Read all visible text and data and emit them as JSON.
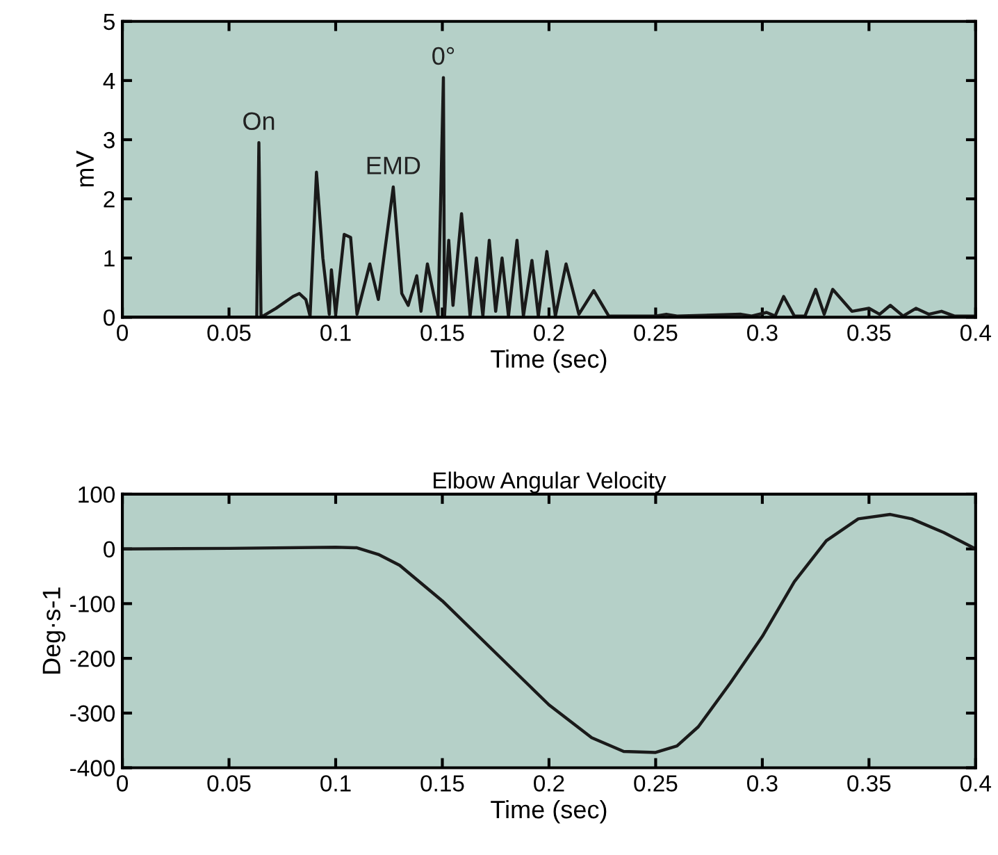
{
  "chart_data": [
    {
      "type": "line",
      "xlabel": "Time (sec)",
      "ylabel": "mV",
      "xlim": [
        0,
        0.4
      ],
      "ylim": [
        0,
        5
      ],
      "xticks": [
        0,
        0.05,
        0.1,
        0.15,
        0.2,
        0.25,
        0.3,
        0.35,
        0.4
      ],
      "yticks": [
        0,
        1,
        2,
        3,
        4,
        5
      ],
      "grid": false,
      "legend": false,
      "marker": "none",
      "line_style": "solid",
      "annotations": [
        {
          "text": "On",
          "x": 0.064,
          "y": 2.95
        },
        {
          "text": "EMD",
          "x": 0.127,
          "y": 2.2
        },
        {
          "text": "0°",
          "x": 0.1505,
          "y": 4.05
        }
      ],
      "series": [
        {
          "color": "#1a1a1a",
          "x": [
            0,
            0.063,
            0.064,
            0.065,
            0.072,
            0.08,
            0.083,
            0.086,
            0.088,
            0.091,
            0.094,
            0.097,
            0.098,
            0.1,
            0.104,
            0.107,
            0.11,
            0.116,
            0.12,
            0.127,
            0.131,
            0.134,
            0.138,
            0.14,
            0.143,
            0.148,
            0.1505,
            0.151,
            0.153,
            0.155,
            0.159,
            0.163,
            0.166,
            0.169,
            0.172,
            0.175,
            0.178,
            0.181,
            0.185,
            0.188,
            0.192,
            0.195,
            0.199,
            0.203,
            0.208,
            0.214,
            0.221,
            0.228,
            0.25,
            0.255,
            0.26,
            0.29,
            0.295,
            0.302,
            0.306,
            0.31,
            0.315,
            0.32,
            0.325,
            0.329,
            0.333,
            0.342,
            0.35,
            0.355,
            0.36,
            0.366,
            0.372,
            0.378,
            0.384,
            0.39,
            0.4
          ],
          "values": [
            0,
            0,
            2.95,
            0,
            0.15,
            0.35,
            0.4,
            0.3,
            0.02,
            2.45,
            1.0,
            0.05,
            0.8,
            0.05,
            1.4,
            1.35,
            0.05,
            0.9,
            0.3,
            2.2,
            0.4,
            0.2,
            0.7,
            0.1,
            0.9,
            0.02,
            4.05,
            0,
            1.3,
            0.2,
            1.75,
            0.02,
            1.0,
            0.02,
            1.3,
            0.1,
            1.0,
            0.02,
            1.3,
            0.02,
            0.96,
            0.02,
            1.11,
            0.02,
            0.9,
            0.05,
            0.45,
            0.02,
            0.02,
            0.05,
            0.02,
            0.05,
            0.02,
            0.08,
            0.02,
            0.35,
            0.02,
            0.02,
            0.47,
            0.05,
            0.47,
            0.1,
            0.15,
            0.05,
            0.2,
            0.02,
            0.15,
            0.05,
            0.1,
            0.02,
            0.02
          ]
        }
      ]
    },
    {
      "type": "line",
      "title": "Elbow Angular Velocity",
      "xlabel": "Time (sec)",
      "ylabel": "Deg·s-1",
      "xlim": [
        0,
        0.4
      ],
      "ylim": [
        -400,
        100
      ],
      "xticks": [
        0,
        0.05,
        0.1,
        0.15,
        0.2,
        0.25,
        0.3,
        0.35,
        0.4
      ],
      "yticks": [
        -400,
        -300,
        -200,
        -100,
        0,
        100
      ],
      "grid": false,
      "legend": false,
      "marker": "none",
      "line_style": "solid",
      "series": [
        {
          "color": "#1a1a1a",
          "x": [
            0,
            0.05,
            0.1,
            0.11,
            0.12,
            0.13,
            0.15,
            0.175,
            0.2,
            0.22,
            0.235,
            0.25,
            0.26,
            0.27,
            0.285,
            0.3,
            0.315,
            0.33,
            0.345,
            0.36,
            0.37,
            0.385,
            0.4
          ],
          "values": [
            0,
            1,
            3,
            2,
            -10,
            -30,
            -95,
            -190,
            -285,
            -345,
            -370,
            -372,
            -360,
            -325,
            -245,
            -160,
            -60,
            15,
            55,
            63,
            55,
            30,
            0
          ]
        }
      ]
    }
  ]
}
